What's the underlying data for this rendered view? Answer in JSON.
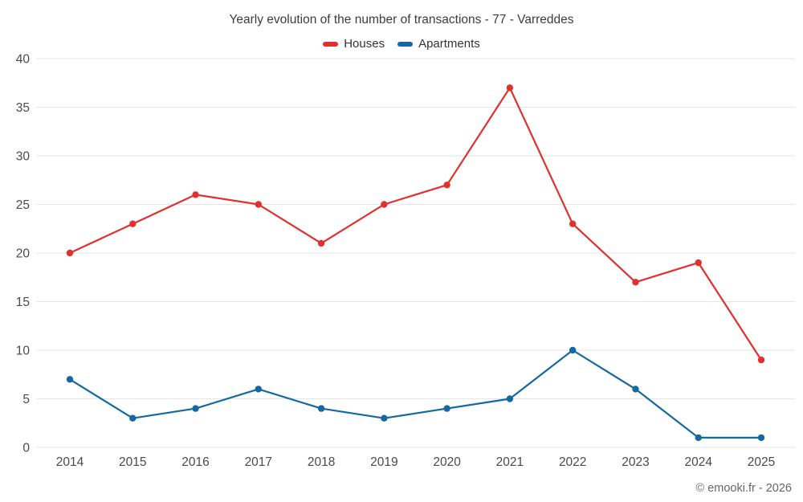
{
  "chart_data": {
    "type": "line",
    "title": "Yearly evolution of the number of transactions - 77 - Varreddes",
    "categories": [
      "2014",
      "2015",
      "2016",
      "2017",
      "2018",
      "2019",
      "2020",
      "2021",
      "2022",
      "2023",
      "2024",
      "2025"
    ],
    "series": [
      {
        "name": "Houses",
        "color": "#e0302f",
        "values": [
          20,
          23,
          26,
          25,
          21,
          25,
          27,
          37,
          23,
          17,
          19,
          9
        ]
      },
      {
        "name": "Apartments",
        "color": "#1569a2",
        "values": [
          7,
          3,
          4,
          6,
          4,
          3,
          4,
          5,
          10,
          6,
          1,
          1
        ]
      }
    ],
    "xlabel": "",
    "ylabel": "",
    "ylim": [
      0,
      40
    ],
    "yticks": [
      0,
      5,
      10,
      15,
      20,
      25,
      30,
      35,
      40
    ],
    "grid": "horizontal",
    "legend_position": "top-center"
  },
  "footer": {
    "copyright": "© emooki.fr - 2026"
  },
  "style": {
    "background": "#ffffff",
    "grid_color": "#e6e6e6",
    "tick_color": "#4a4a4a",
    "title_color": "#3d3d3d"
  }
}
